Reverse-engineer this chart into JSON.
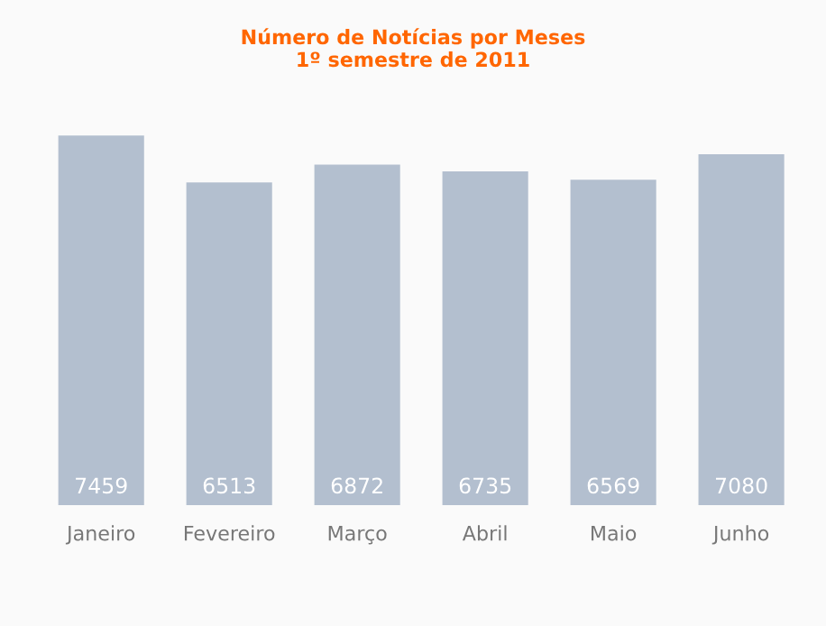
{
  "chart_data": {
    "type": "bar",
    "title": "Número de Notícias por Meses\n1º semestre de 2011",
    "categories": [
      "Janeiro",
      "Fevereiro",
      "Março",
      "Abril",
      "Maio",
      "Junho"
    ],
    "values": [
      7459,
      6513,
      6872,
      6735,
      6569,
      7080
    ],
    "color": "#b3bfcf",
    "data_labels": true,
    "grid": false,
    "legend": false
  }
}
